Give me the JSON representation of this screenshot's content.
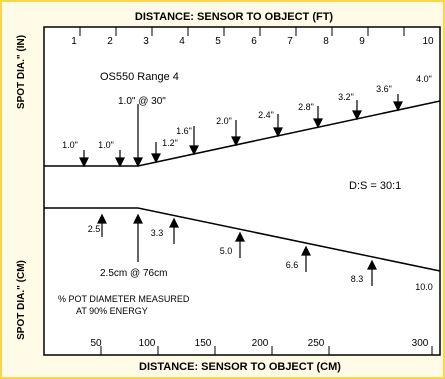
{
  "top_axis": {
    "title": "DISTANCE: SENSOR TO OBJECT (FT)",
    "ticks": [
      "1",
      "2",
      "3",
      "4",
      "5",
      "6",
      "7",
      "8",
      "9",
      "10"
    ]
  },
  "bottom_axis": {
    "title": "DISTANCE: SENSOR TO OBJECT (CM)",
    "ticks": [
      "50",
      "100",
      "150",
      "200",
      "250",
      "300"
    ]
  },
  "left_labels": {
    "upper": "SPOT DIA.\" (IN)",
    "lower": "SPOT DIA.\" (CM)"
  },
  "model_label": "OS550 Range 4",
  "ds_ratio": "D:S = 30:1",
  "upper_focus_label": "1.0\" @ 30\"",
  "lower_focus_label": "2.5cm @ 76cm",
  "footnote": [
    "% POT DIAMETER MEASURED",
    "AT 90% ENERGY"
  ],
  "upper_callouts": [
    "1.0\"",
    "1.0\"",
    "1.2\"",
    "1.6\"",
    "2.0\"",
    "2.4\"",
    "2.8\"",
    "3.2\"",
    "3.6\"",
    "4.0\""
  ],
  "lower_callouts": [
    "2.5",
    "3.3",
    "5.0",
    "6.6",
    "8.3",
    "10.0"
  ],
  "colors": {
    "background": "#fffbe6",
    "frame": "#ffd54a",
    "ink": "#000000"
  }
}
